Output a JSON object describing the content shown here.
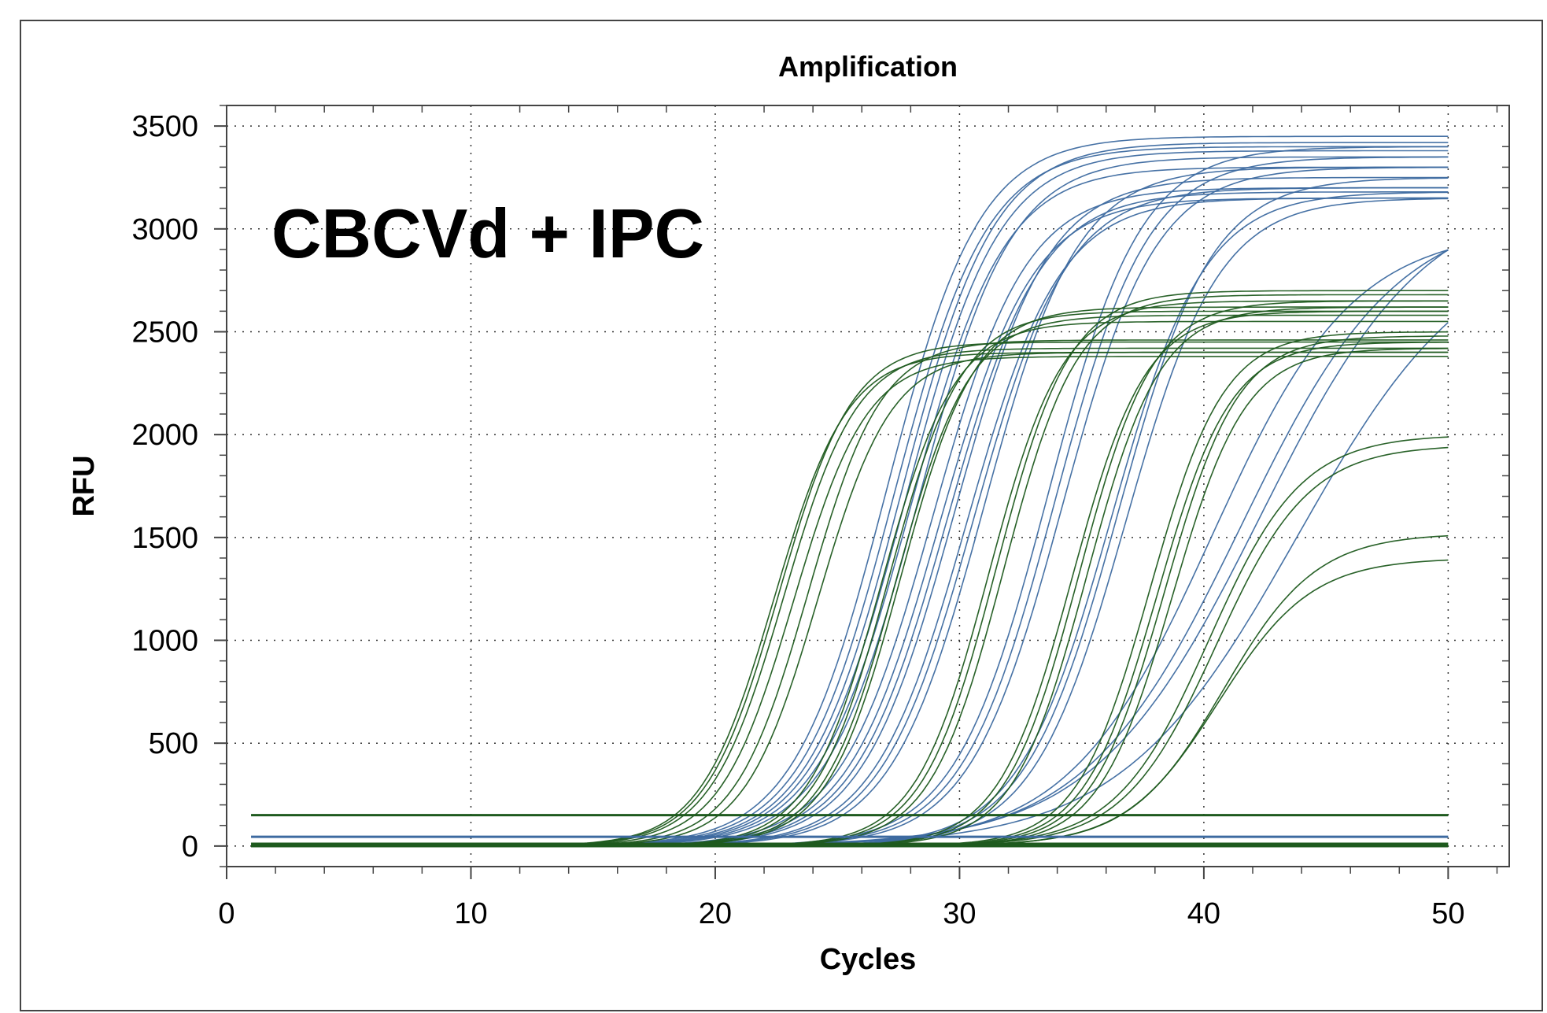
{
  "chart_data": {
    "type": "line",
    "title": "Amplification",
    "annotation": "CBCVd + IPC",
    "xlabel": "Cycles",
    "ylabel": "RFU",
    "xlim": [
      0,
      52.5
    ],
    "ylim": [
      -100,
      3600
    ],
    "xticks": [
      0,
      10,
      20,
      30,
      40,
      50
    ],
    "yticks": [
      0,
      500,
      1000,
      1500,
      2000,
      2500,
      3000,
      3500
    ],
    "grid": true,
    "colors": {
      "blue": "#3d6aa0",
      "green": "#1e5a1e",
      "frame": "#444444"
    },
    "thresholds": [
      {
        "color": "green",
        "y": 150
      },
      {
        "color": "blue",
        "y": 45
      }
    ],
    "cycles_range": [
      1,
      50
    ],
    "curve_model": "sigmoid: RFU(c) = plateau / (1 + exp(-(c - midpoint)/slope))",
    "series": [
      {
        "color": "blue",
        "midpoint": 27.0,
        "plateau": 3450,
        "slope": 1.9
      },
      {
        "color": "blue",
        "midpoint": 27.3,
        "plateau": 3400,
        "slope": 1.9
      },
      {
        "color": "blue",
        "midpoint": 27.6,
        "plateau": 3420,
        "slope": 1.9
      },
      {
        "color": "blue",
        "midpoint": 27.8,
        "plateau": 3380,
        "slope": 1.9
      },
      {
        "color": "blue",
        "midpoint": 28.0,
        "plateau": 3300,
        "slope": 1.9
      },
      {
        "color": "blue",
        "midpoint": 28.3,
        "plateau": 3350,
        "slope": 1.9
      },
      {
        "color": "blue",
        "midpoint": 28.9,
        "plateau": 3200,
        "slope": 1.9
      },
      {
        "color": "blue",
        "midpoint": 29.2,
        "plateau": 3150,
        "slope": 1.9
      },
      {
        "color": "blue",
        "midpoint": 29.5,
        "plateau": 3180,
        "slope": 1.9
      },
      {
        "color": "blue",
        "midpoint": 29.8,
        "plateau": 3250,
        "slope": 1.9
      },
      {
        "color": "blue",
        "midpoint": 30.3,
        "plateau": 3150,
        "slope": 1.9
      },
      {
        "color": "blue",
        "midpoint": 30.6,
        "plateau": 3200,
        "slope": 1.9
      },
      {
        "color": "blue",
        "midpoint": 31.0,
        "plateau": 3300,
        "slope": 1.9
      },
      {
        "color": "blue",
        "midpoint": 33.6,
        "plateau": 3400,
        "slope": 1.9
      },
      {
        "color": "blue",
        "midpoint": 33.9,
        "plateau": 3350,
        "slope": 1.9
      },
      {
        "color": "blue",
        "midpoint": 34.2,
        "plateau": 3300,
        "slope": 1.9
      },
      {
        "color": "blue",
        "midpoint": 36.2,
        "plateau": 3180,
        "slope": 1.9
      },
      {
        "color": "blue",
        "midpoint": 36.5,
        "plateau": 3250,
        "slope": 1.9
      },
      {
        "color": "blue",
        "midpoint": 36.8,
        "plateau": 3150,
        "slope": 1.9
      },
      {
        "color": "blue",
        "midpoint": 40.3,
        "plateau": 3000,
        "slope": 2.9
      },
      {
        "color": "blue",
        "midpoint": 41.5,
        "plateau": 3100,
        "slope": 3.2
      },
      {
        "color": "blue",
        "midpoint": 42.3,
        "plateau": 3200,
        "slope": 3.4
      },
      {
        "color": "blue",
        "midpoint": 43.8,
        "plateau": 3000,
        "slope": 3.6
      },
      {
        "color": "green",
        "midpoint": 22.4,
        "plateau": 2400,
        "slope": 1.5
      },
      {
        "color": "green",
        "midpoint": 22.6,
        "plateau": 2450,
        "slope": 1.5
      },
      {
        "color": "green",
        "midpoint": 22.8,
        "plateau": 2420,
        "slope": 1.5
      },
      {
        "color": "green",
        "midpoint": 23.2,
        "plateau": 2380,
        "slope": 1.5
      },
      {
        "color": "green",
        "midpoint": 23.8,
        "plateau": 2460,
        "slope": 1.5
      },
      {
        "color": "green",
        "midpoint": 24.2,
        "plateau": 2400,
        "slope": 1.5
      },
      {
        "color": "green",
        "midpoint": 26.8,
        "plateau": 2550,
        "slope": 1.5
      },
      {
        "color": "green",
        "midpoint": 27.1,
        "plateau": 2600,
        "slope": 1.5
      },
      {
        "color": "green",
        "midpoint": 27.4,
        "plateau": 2580,
        "slope": 1.5
      },
      {
        "color": "green",
        "midpoint": 27.6,
        "plateau": 2620,
        "slope": 1.5
      },
      {
        "color": "green",
        "midpoint": 31.2,
        "plateau": 2650,
        "slope": 1.5
      },
      {
        "color": "green",
        "midpoint": 31.5,
        "plateau": 2700,
        "slope": 1.5
      },
      {
        "color": "green",
        "midpoint": 31.8,
        "plateau": 2680,
        "slope": 1.5
      },
      {
        "color": "green",
        "midpoint": 34.6,
        "plateau": 2600,
        "slope": 1.5
      },
      {
        "color": "green",
        "midpoint": 34.9,
        "plateau": 2650,
        "slope": 1.5
      },
      {
        "color": "green",
        "midpoint": 35.2,
        "plateau": 2620,
        "slope": 1.5
      },
      {
        "color": "green",
        "midpoint": 37.8,
        "plateau": 2500,
        "slope": 1.5
      },
      {
        "color": "green",
        "midpoint": 38.1,
        "plateau": 2450,
        "slope": 1.5
      },
      {
        "color": "green",
        "midpoint": 38.4,
        "plateau": 2480,
        "slope": 1.5
      },
      {
        "color": "green",
        "midpoint": 38.7,
        "plateau": 2420,
        "slope": 1.5
      },
      {
        "color": "green",
        "midpoint": 40.2,
        "plateau": 2000,
        "slope": 1.9
      },
      {
        "color": "green",
        "midpoint": 40.5,
        "plateau": 1950,
        "slope": 1.9
      },
      {
        "color": "green",
        "midpoint": 40.8,
        "plateau": 1520,
        "slope": 1.9
      },
      {
        "color": "green",
        "midpoint": 40.6,
        "plateau": 1400,
        "slope": 1.9
      }
    ]
  }
}
